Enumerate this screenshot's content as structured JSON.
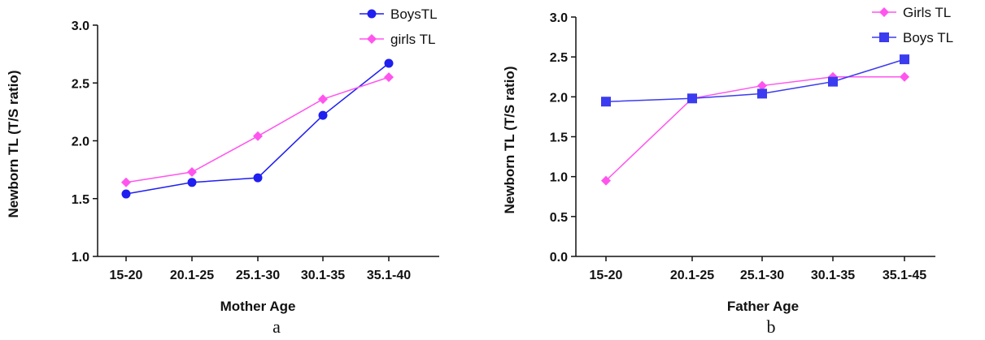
{
  "chart_data": [
    {
      "type": "line",
      "caption": "a",
      "xlabel": "Mother Age",
      "ylabel": "Newborn TL  (T/S ratio)",
      "categories": [
        "15-20",
        "20.1-25",
        "25.1-30",
        "30.1-35",
        "35.1-40"
      ],
      "ylim": [
        1.0,
        3.0
      ],
      "yticks": [
        "1.0",
        "1.5",
        "2.0",
        "2.5",
        "3.0"
      ],
      "legend_position": "top-right",
      "series": [
        {
          "name": "BoysTL",
          "color": "#1f1fef",
          "marker": "circle",
          "values": [
            1.54,
            1.64,
            1.68,
            2.22,
            2.67
          ]
        },
        {
          "name": "girls TL",
          "color": "#ff55ee",
          "marker": "diamond",
          "values": [
            1.64,
            1.73,
            2.04,
            2.36,
            2.55
          ]
        }
      ]
    },
    {
      "type": "line",
      "caption": "b",
      "xlabel": "Father Age",
      "ylabel": "Newborn TL  (T/S ratio)",
      "categories": [
        "15-20",
        "20.1-25",
        "25.1-30",
        "30.1-35",
        "35.1-45"
      ],
      "ylim": [
        0.0,
        3.0
      ],
      "yticks": [
        "0.0",
        "0.5",
        "1.0",
        "1.5",
        "2.0",
        "2.5",
        "3.0"
      ],
      "legend_position": "top-right",
      "series": [
        {
          "name": "Girls TL",
          "color": "#ff55ee",
          "marker": "diamond",
          "values": [
            0.95,
            1.98,
            2.14,
            2.25,
            2.25
          ]
        },
        {
          "name": "Boys TL",
          "color": "#3b3bef",
          "marker": "square",
          "values": [
            1.94,
            1.98,
            2.04,
            2.19,
            2.47
          ]
        }
      ]
    }
  ]
}
